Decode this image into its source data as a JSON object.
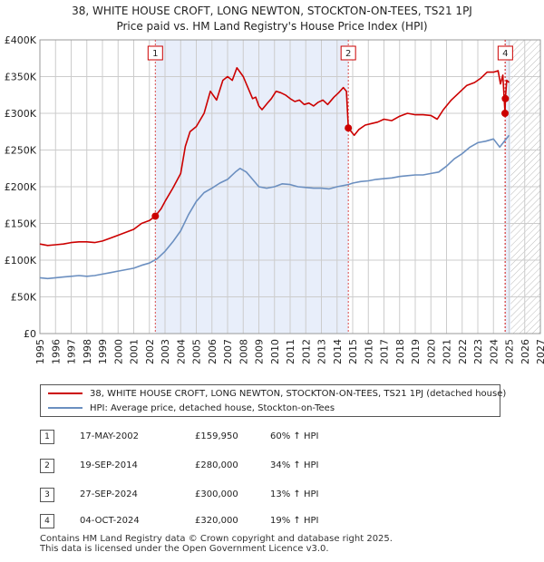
{
  "title_line1": "38, WHITE HOUSE CROFT, LONG NEWTON, STOCKTON-ON-TEES, TS21 1PJ",
  "title_line2": "Price paid vs. HM Land Registry's House Price Index (HPI)",
  "colors": {
    "property": "#cc0000",
    "hpi": "#6b8fc0",
    "shade": "#e8eefa",
    "grid": "#cccccc",
    "marker_line": "#d94a4a"
  },
  "chart_data": {
    "type": "line",
    "title": "Price paid vs. HM Land Registry's House Price Index (HPI)",
    "xlim": [
      1995,
      2027
    ],
    "ylim": [
      0,
      400000
    ],
    "y_ticks": [
      {
        "value": 0,
        "label": "£0"
      },
      {
        "value": 50000,
        "label": "£50K"
      },
      {
        "value": 100000,
        "label": "£100K"
      },
      {
        "value": 150000,
        "label": "£150K"
      },
      {
        "value": 200000,
        "label": "£200K"
      },
      {
        "value": 250000,
        "label": "£250K"
      },
      {
        "value": 300000,
        "label": "£300K"
      },
      {
        "value": 350000,
        "label": "£350K"
      },
      {
        "value": 400000,
        "label": "£400K"
      }
    ],
    "x_ticks": [
      "1995",
      "1996",
      "1997",
      "1998",
      "1999",
      "2000",
      "2001",
      "2002",
      "2003",
      "2004",
      "2005",
      "2006",
      "2007",
      "2008",
      "2009",
      "2010",
      "2011",
      "2012",
      "2013",
      "2014",
      "2015",
      "2016",
      "2017",
      "2018",
      "2019",
      "2020",
      "2021",
      "2022",
      "2023",
      "2024",
      "2025",
      "2026",
      "2027"
    ],
    "shaded_ranges": [
      [
        2002.38,
        2014.72
      ],
      [
        2024.76,
        2025.1
      ]
    ],
    "projection_start": 2025.1,
    "series": [
      {
        "name": "38, WHITE HOUSE CROFT, LONG NEWTON, STOCKTON-ON-TEES, TS21 1PJ (detached house)",
        "color": "#cc0000",
        "points": [
          [
            1995.0,
            122000
          ],
          [
            1995.5,
            120000
          ],
          [
            1996.0,
            121000
          ],
          [
            1996.5,
            122000
          ],
          [
            1997.0,
            124000
          ],
          [
            1997.5,
            125000
          ],
          [
            1998.0,
            125000
          ],
          [
            1998.5,
            124000
          ],
          [
            1999.0,
            126000
          ],
          [
            1999.5,
            130000
          ],
          [
            2000.0,
            134000
          ],
          [
            2000.5,
            138000
          ],
          [
            2001.0,
            142000
          ],
          [
            2001.5,
            150000
          ],
          [
            2002.0,
            154000
          ],
          [
            2002.38,
            159950
          ],
          [
            2002.75,
            170000
          ],
          [
            2003.0,
            180000
          ],
          [
            2003.5,
            198000
          ],
          [
            2004.0,
            218000
          ],
          [
            2004.3,
            255000
          ],
          [
            2004.6,
            275000
          ],
          [
            2005.0,
            282000
          ],
          [
            2005.5,
            300000
          ],
          [
            2005.9,
            330000
          ],
          [
            2006.3,
            318000
          ],
          [
            2006.7,
            345000
          ],
          [
            2007.0,
            350000
          ],
          [
            2007.3,
            345000
          ],
          [
            2007.6,
            362000
          ],
          [
            2007.8,
            356000
          ],
          [
            2008.0,
            350000
          ],
          [
            2008.3,
            335000
          ],
          [
            2008.6,
            320000
          ],
          [
            2008.8,
            322000
          ],
          [
            2009.0,
            310000
          ],
          [
            2009.2,
            305000
          ],
          [
            2009.4,
            310000
          ],
          [
            2009.6,
            315000
          ],
          [
            2009.8,
            320000
          ],
          [
            2010.1,
            330000
          ],
          [
            2010.4,
            328000
          ],
          [
            2010.7,
            325000
          ],
          [
            2011.0,
            320000
          ],
          [
            2011.3,
            316000
          ],
          [
            2011.6,
            318000
          ],
          [
            2011.9,
            312000
          ],
          [
            2012.2,
            314000
          ],
          [
            2012.5,
            310000
          ],
          [
            2012.8,
            315000
          ],
          [
            2013.1,
            318000
          ],
          [
            2013.4,
            312000
          ],
          [
            2013.8,
            322000
          ],
          [
            2014.1,
            328000
          ],
          [
            2014.4,
            335000
          ],
          [
            2014.6,
            330000
          ],
          [
            2014.72,
            280000
          ],
          [
            2015.1,
            270000
          ],
          [
            2015.4,
            278000
          ],
          [
            2015.8,
            284000
          ],
          [
            2016.2,
            286000
          ],
          [
            2016.6,
            288000
          ],
          [
            2017.0,
            292000
          ],
          [
            2017.5,
            290000
          ],
          [
            2018.0,
            296000
          ],
          [
            2018.5,
            300000
          ],
          [
            2019.0,
            298000
          ],
          [
            2019.5,
            298000
          ],
          [
            2020.0,
            297000
          ],
          [
            2020.4,
            292000
          ],
          [
            2020.8,
            305000
          ],
          [
            2021.3,
            318000
          ],
          [
            2021.8,
            328000
          ],
          [
            2022.3,
            338000
          ],
          [
            2022.8,
            342000
          ],
          [
            2023.2,
            348000
          ],
          [
            2023.6,
            356000
          ],
          [
            2024.0,
            356000
          ],
          [
            2024.3,
            358000
          ],
          [
            2024.45,
            340000
          ],
          [
            2024.6,
            352000
          ],
          [
            2024.74,
            300000
          ],
          [
            2024.76,
            320000
          ],
          [
            2024.85,
            345000
          ],
          [
            2025.0,
            342000
          ]
        ]
      },
      {
        "name": "HPI: Average price, detached house, Stockton-on-Tees",
        "color": "#6b8fc0",
        "points": [
          [
            1995.0,
            76000
          ],
          [
            1995.5,
            75000
          ],
          [
            1996.0,
            76000
          ],
          [
            1996.5,
            77000
          ],
          [
            1997.0,
            78000
          ],
          [
            1997.5,
            79000
          ],
          [
            1998.0,
            78000
          ],
          [
            1998.5,
            79000
          ],
          [
            1999.0,
            81000
          ],
          [
            1999.5,
            83000
          ],
          [
            2000.0,
            85000
          ],
          [
            2000.5,
            87000
          ],
          [
            2001.0,
            89000
          ],
          [
            2001.5,
            93000
          ],
          [
            2002.0,
            96000
          ],
          [
            2002.5,
            102000
          ],
          [
            2003.0,
            112000
          ],
          [
            2003.5,
            125000
          ],
          [
            2004.0,
            140000
          ],
          [
            2004.5,
            162000
          ],
          [
            2005.0,
            180000
          ],
          [
            2005.5,
            192000
          ],
          [
            2006.0,
            198000
          ],
          [
            2006.5,
            205000
          ],
          [
            2007.0,
            210000
          ],
          [
            2007.5,
            220000
          ],
          [
            2007.8,
            225000
          ],
          [
            2008.2,
            220000
          ],
          [
            2008.6,
            210000
          ],
          [
            2009.0,
            200000
          ],
          [
            2009.5,
            198000
          ],
          [
            2010.0,
            200000
          ],
          [
            2010.5,
            204000
          ],
          [
            2011.0,
            203000
          ],
          [
            2011.5,
            200000
          ],
          [
            2012.0,
            199000
          ],
          [
            2012.5,
            198000
          ],
          [
            2013.0,
            198000
          ],
          [
            2013.5,
            197000
          ],
          [
            2014.0,
            200000
          ],
          [
            2014.72,
            203000
          ],
          [
            2015.0,
            205000
          ],
          [
            2015.5,
            207000
          ],
          [
            2016.0,
            208000
          ],
          [
            2016.5,
            210000
          ],
          [
            2017.0,
            211000
          ],
          [
            2017.5,
            212000
          ],
          [
            2018.0,
            214000
          ],
          [
            2018.5,
            215000
          ],
          [
            2019.0,
            216000
          ],
          [
            2019.5,
            216000
          ],
          [
            2020.0,
            218000
          ],
          [
            2020.5,
            220000
          ],
          [
            2021.0,
            228000
          ],
          [
            2021.5,
            238000
          ],
          [
            2022.0,
            245000
          ],
          [
            2022.5,
            254000
          ],
          [
            2023.0,
            260000
          ],
          [
            2023.5,
            262000
          ],
          [
            2024.0,
            265000
          ],
          [
            2024.4,
            254000
          ],
          [
            2024.7,
            262000
          ],
          [
            2025.0,
            270000
          ]
        ]
      }
    ],
    "sales": [
      {
        "id": "1",
        "x": 2002.38,
        "price": 159950
      },
      {
        "id": "2",
        "x": 2014.72,
        "price": 280000
      },
      {
        "id": "3",
        "x": 2024.74,
        "price": 300000
      },
      {
        "id": "4",
        "x": 2024.76,
        "price": 320000
      }
    ],
    "marker_labels": [
      {
        "id": "1",
        "x": 2002.38
      },
      {
        "id": "2",
        "x": 2014.72
      },
      {
        "id": "4",
        "x": 2024.76
      }
    ]
  },
  "legend": {
    "property_label": "38, WHITE HOUSE CROFT, LONG NEWTON, STOCKTON-ON-TEES, TS21 1PJ (detached house)",
    "hpi_label": "HPI: Average price, detached house, Stockton-on-Tees"
  },
  "transactions": [
    {
      "num": "1",
      "date": "17-MAY-2002",
      "price": "£159,950",
      "hpi": "60% ↑ HPI"
    },
    {
      "num": "2",
      "date": "19-SEP-2014",
      "price": "£280,000",
      "hpi": "34% ↑ HPI"
    },
    {
      "num": "3",
      "date": "27-SEP-2024",
      "price": "£300,000",
      "hpi": "13% ↑ HPI"
    },
    {
      "num": "4",
      "date": "04-OCT-2024",
      "price": "£320,000",
      "hpi": "19% ↑ HPI"
    }
  ],
  "footer": {
    "line1": "Contains HM Land Registry data © Crown copyright and database right 2025.",
    "line2": "This data is licensed under the Open Government Licence v3.0."
  }
}
